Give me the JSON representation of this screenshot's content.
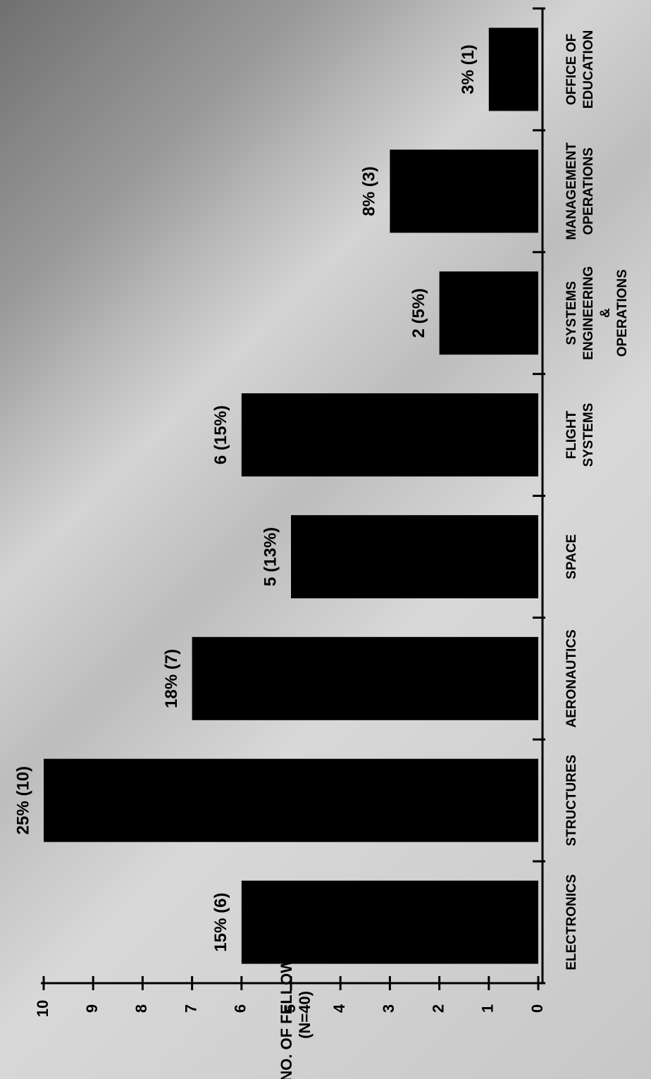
{
  "chart_data": {
    "type": "bar",
    "orientation": "rotated-90-ccw",
    "ylabel": "NO. OF FELLOWS",
    "ylabel_sub": "(N=40)",
    "ylim": [
      0,
      10
    ],
    "yticks": [
      "0",
      "1",
      "2",
      "3",
      "4",
      "5",
      "6",
      "7",
      "8",
      "9",
      "10"
    ],
    "categories": [
      "ELECTRONICS",
      "STRUCTURES",
      "AERONAUTICS",
      "SPACE",
      "FLIGHT SYSTEMS",
      "SYSTEMS ENGINEERING & OPERATIONS",
      "MANAGEMENT OPERATIONS",
      "OFFICE OF EDUCATION"
    ],
    "category_lines": [
      [
        "ELECTRONICS"
      ],
      [
        "STRUCTURES"
      ],
      [
        "AERONAUTICS"
      ],
      [
        "SPACE"
      ],
      [
        "FLIGHT",
        "SYSTEMS"
      ],
      [
        "SYSTEMS",
        "ENGINEERING",
        "&",
        "OPERATIONS"
      ],
      [
        "MANAGEMENT",
        "OPERATIONS"
      ],
      [
        "OFFICE OF",
        "EDUCATION"
      ]
    ],
    "values": [
      6,
      10,
      7,
      5,
      6,
      2,
      3,
      1
    ],
    "data_labels": [
      "15% (6)",
      "25% (10)",
      "18% (7)",
      "5 (13%)",
      "6 (15%)",
      "2 (5%)",
      "8% (3)",
      "3% (1)"
    ],
    "bar_color": "#000000",
    "axis_color": "#000000",
    "grid": false,
    "legend": "none"
  }
}
